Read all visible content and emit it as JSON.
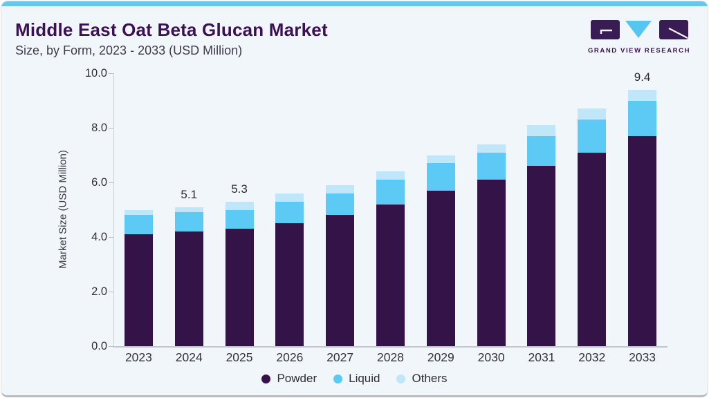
{
  "header": {
    "title": "Middle East Oat Beta Glucan Market",
    "subtitle": "Size, by Form, 2023 - 2033 (USD Million)"
  },
  "logo": {
    "caption": "GRAND VIEW RESEARCH"
  },
  "colors": {
    "accent_top_bar": "#68C7EF",
    "title_purple": "#3A1253",
    "card_background": "#F1F6FA",
    "powder": "#341349",
    "liquid": "#5CCAF4",
    "others": "#BFE7F9",
    "logo_purple": "#3A1C55",
    "logo_triangle_blue": "#55C6F0",
    "axis_line": "#C9CDD5"
  },
  "chart_data": {
    "type": "bar",
    "stacked": true,
    "title": "Middle East Oat Beta Glucan Market Size, by Form, 2023 - 2033 (USD Million)",
    "categories": [
      "2023",
      "2024",
      "2025",
      "2026",
      "2027",
      "2028",
      "2029",
      "2030",
      "2031",
      "2032",
      "2033"
    ],
    "series": [
      {
        "name": "Powder",
        "color": "#341349",
        "values": [
          4.1,
          4.2,
          4.3,
          4.5,
          4.8,
          5.2,
          5.7,
          6.1,
          6.6,
          7.1,
          7.7
        ]
      },
      {
        "name": "Liquid",
        "color": "#5CCAF4",
        "values": [
          0.7,
          0.7,
          0.7,
          0.8,
          0.8,
          0.9,
          1.0,
          1.0,
          1.1,
          1.2,
          1.3
        ]
      },
      {
        "name": "Others",
        "color": "#BFE7F9",
        "values": [
          0.2,
          0.2,
          0.3,
          0.3,
          0.3,
          0.3,
          0.3,
          0.3,
          0.4,
          0.4,
          0.4
        ]
      }
    ],
    "bar_labels": [
      "",
      "5.1",
      "5.3",
      "",
      "",
      "",
      "",
      "",
      "",
      "",
      "9.4"
    ],
    "xlabel": "",
    "ylabel": "Market Size (USD Million)",
    "ylim": [
      0,
      10
    ],
    "yticks": [
      "0.0",
      "2.0",
      "4.0",
      "6.0",
      "8.0",
      "10.0"
    ],
    "grid": false,
    "legend_position": "bottom"
  }
}
